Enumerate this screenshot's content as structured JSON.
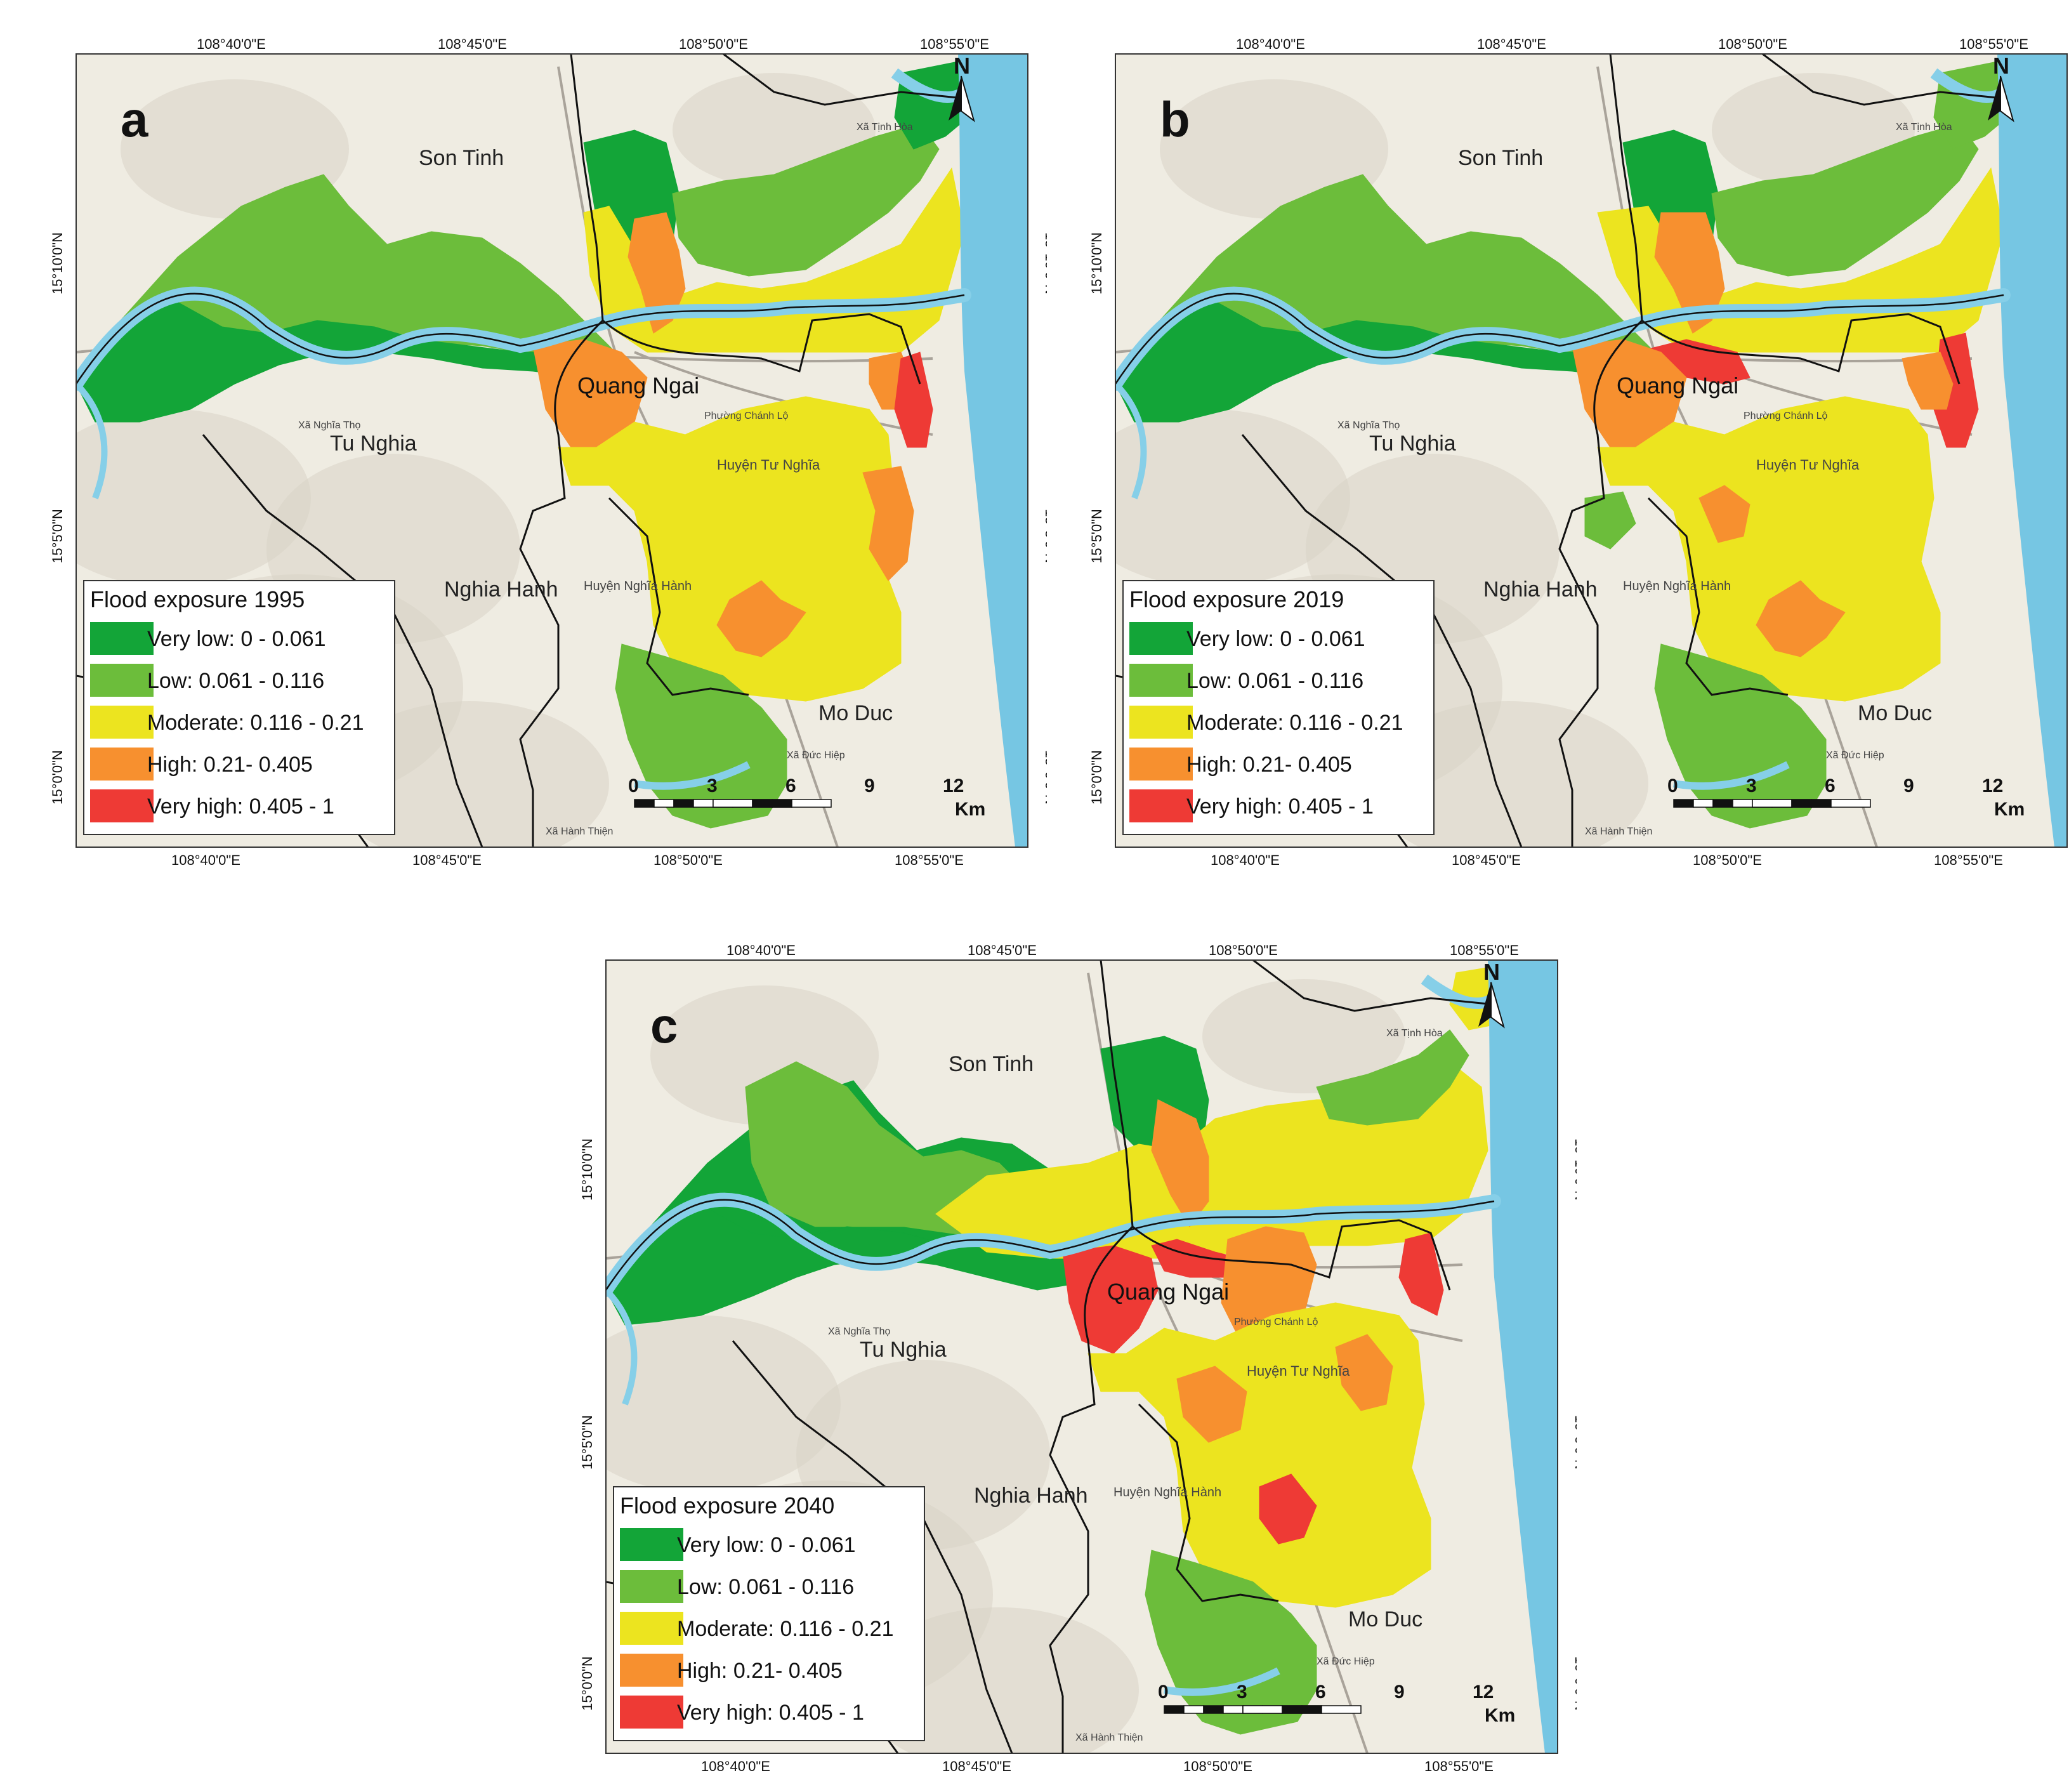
{
  "panels": [
    {
      "letter": "a",
      "legend_title": "Flood exposure 1995",
      "top_ticks": [
        "108°40'0\"E",
        "108°45'0\"E",
        "108°50'0\"E",
        "108°55'0\"E"
      ],
      "bottom_ticks": [
        "108°40'0\"E",
        "108°45'0\"E",
        "108°50'0\"E",
        "108°55'0\"E"
      ],
      "side_ticks": [
        "15°10'0\"N",
        "15°5'0\"N",
        "15°0'0\"N"
      ]
    },
    {
      "letter": "b",
      "legend_title": "Flood exposure 2019",
      "top_ticks": [
        "108°40'0\"E",
        "108°45'0\"E",
        "108°50'0\"E",
        "108°55'0\"E"
      ],
      "bottom_ticks": [
        "108°40'0\"E",
        "108°45'0\"E",
        "108°50'0\"E",
        "108°55'0\"E"
      ],
      "side_ticks": [
        "15°10'0\"N",
        "15°5'0\"N",
        "15°0'0\"N"
      ]
    },
    {
      "letter": "c",
      "legend_title": "Flood exposure 2040",
      "top_ticks": [
        "108°40'0\"E",
        "108°45'0\"E",
        "108°50'0\"E",
        "108°55'0\"E"
      ],
      "bottom_ticks": [
        "108°40'0\"E",
        "108°45'0\"E",
        "108°50'0\"E",
        "108°55'0\"E"
      ],
      "side_ticks": [
        "15°10'0\"N",
        "15°5'0\"N",
        "15°0'0\"N"
      ]
    }
  ],
  "legend_classes": [
    {
      "label": "Very low: 0 - 0.061",
      "color": "#13a538"
    },
    {
      "label": "Low: 0.061 - 0.116",
      "color": "#6cbd3b"
    },
    {
      "label": "Moderate: 0.116 - 0.21",
      "color": "#ece41f"
    },
    {
      "label": "High: 0.21- 0.405",
      "color": "#f7902f"
    },
    {
      "label": "Very high: 0.405 - 1",
      "color": "#ee3a35"
    }
  ],
  "place_labels": {
    "son_tinh": "Son Tinh",
    "tu_nghia": "Tu Nghia",
    "nghia_hanh": "Nghia Hanh",
    "quang_ngai": "Quang Ngai",
    "mo_duc": "Mo Duc",
    "huyen_tu_nghia": "Huyện Tư Nghĩa",
    "huyen_nghia_hanh": "Huyện Nghĩa Hành",
    "xa_tinh_hoa": "Xã Tịnh Hòa",
    "xa_nghia_tho": "Xã Nghĩa Thọ",
    "xa_hanh_thien": "Xã Hành Thiện",
    "xa_duc_hiep": "Xã Đức Hiệp",
    "phuong_chanh_lo": "Phường Chánh Lộ"
  },
  "north_label": "N",
  "scale": {
    "ticks": [
      "0",
      "3",
      "6",
      "9",
      "12"
    ],
    "unit": "Km"
  },
  "colors": {
    "sea": "#76c6e3",
    "river": "#86cfe8",
    "land": "#efece2",
    "border": "#111111"
  }
}
